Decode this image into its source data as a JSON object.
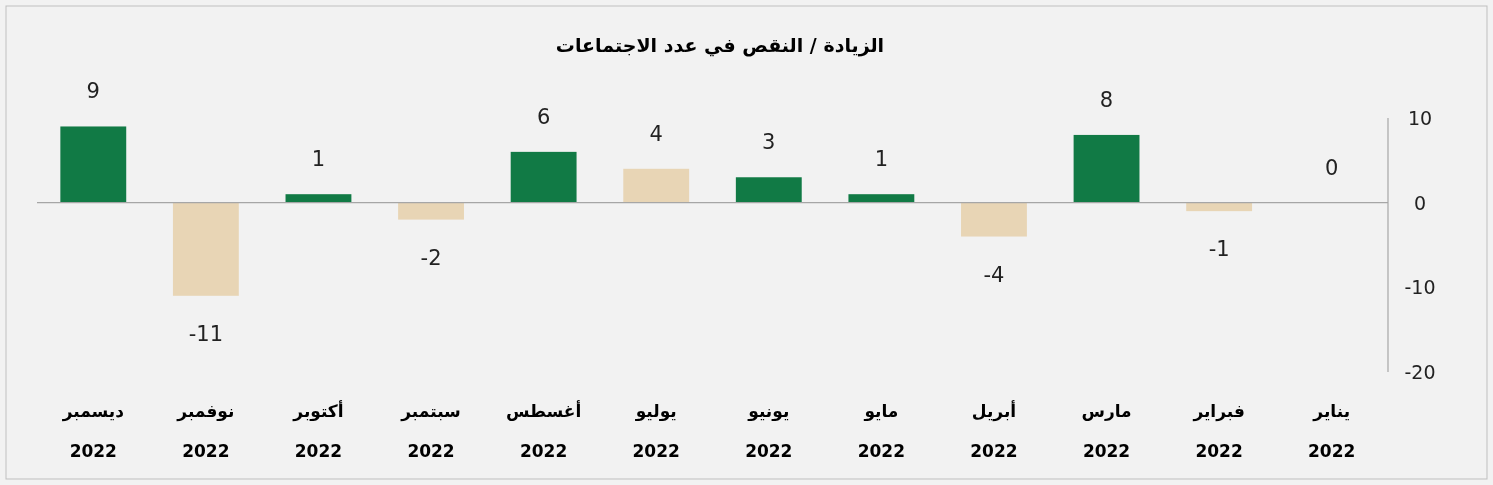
{
  "chart_data": {
    "type": "bar",
    "title": "الزيادة / النقص  في عدد الاجتماعات",
    "categories": [
      "ديسمبر\n2022",
      "نوفمبر\n2022",
      "أكتوبر\n2022",
      "سبتمبر\n2022",
      "أغسطس\n2022",
      "يوليو\n2022",
      "يونيو\n2022",
      "مايو\n2022",
      "أبريل\n2022",
      "مارس\n2022",
      "فبراير\n2022",
      "يناير\n2022"
    ],
    "values": [
      9,
      -11,
      1,
      -2,
      6,
      4,
      3,
      1,
      -4,
      8,
      -1,
      0
    ],
    "colors": [
      "#117a45",
      "#e8d5b5",
      "#117a45",
      "#e8d5b5",
      "#117a45",
      "#e8d5b5",
      "#117a45",
      "#117a45",
      "#e8d5b5",
      "#117a45",
      "#e8d5b5",
      "#117a45"
    ],
    "ylim": [
      -20,
      10
    ],
    "yticks": [
      10,
      0,
      -10,
      -20
    ],
    "data_labels": true
  }
}
